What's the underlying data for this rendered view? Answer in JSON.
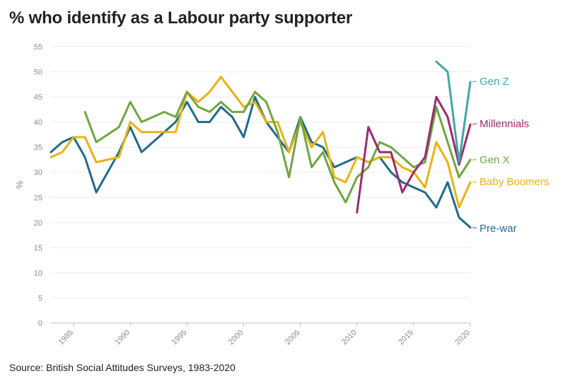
{
  "title": "% who identify as a Labour party supporter",
  "source": "Source: British Social Attitudes Surveys, 1983-2020",
  "chart_data": {
    "type": "line",
    "title": "% who identify as a Labour party supporter",
    "xlabel": "",
    "ylabel": "%",
    "xlim": [
      1983,
      2020
    ],
    "ylim": [
      0,
      55
    ],
    "yticks": [
      0,
      5,
      10,
      15,
      20,
      25,
      30,
      35,
      40,
      45,
      50,
      55
    ],
    "xticks": [
      1985,
      1990,
      1995,
      2000,
      2005,
      2010,
      2015,
      2020
    ],
    "grid": true,
    "legend": "right, end labels",
    "series": [
      {
        "name": "Pre-war",
        "color": "#1f6b8e",
        "x": [
          1983,
          1984,
          1985,
          1986,
          1987,
          1989,
          1990,
          1991,
          1993,
          1994,
          1995,
          1996,
          1997,
          1998,
          1999,
          2000,
          2001,
          2002,
          2003,
          2004,
          2005,
          2006,
          2007,
          2008,
          2009,
          2010,
          2011,
          2012,
          2013,
          2014,
          2015,
          2016,
          2017,
          2018,
          2019,
          2020
        ],
        "y": [
          34,
          36,
          37,
          33,
          26,
          34,
          39,
          34,
          38,
          40,
          44,
          40,
          40,
          43,
          41,
          37,
          45,
          40,
          37,
          34,
          41,
          36,
          35,
          31,
          32,
          33,
          32,
          33,
          30,
          28,
          27,
          26,
          23,
          28,
          21,
          19
        ]
      },
      {
        "name": "Baby Boomers",
        "color": "#e8b213",
        "x": [
          1983,
          1984,
          1985,
          1986,
          1987,
          1989,
          1990,
          1991,
          1993,
          1994,
          1995,
          1996,
          1997,
          1998,
          1999,
          2000,
          2001,
          2002,
          2003,
          2004,
          2005,
          2006,
          2007,
          2008,
          2009,
          2010,
          2011,
          2012,
          2013,
          2014,
          2015,
          2016,
          2017,
          2018,
          2019,
          2020
        ],
        "y": [
          33,
          34,
          37,
          37,
          32,
          33,
          40,
          38,
          38,
          38,
          46,
          44,
          46,
          49,
          46,
          43,
          44,
          40,
          40,
          34,
          40,
          35,
          38,
          29,
          28,
          33,
          32,
          33,
          33,
          31,
          30,
          27,
          36,
          32,
          23,
          28
        ]
      },
      {
        "name": "Gen X",
        "color": "#6ea63f",
        "x": [
          1986,
          1987,
          1989,
          1990,
          1991,
          1993,
          1994,
          1995,
          1996,
          1997,
          1998,
          1999,
          2000,
          2001,
          2002,
          2003,
          2004,
          2005,
          2006,
          2007,
          2008,
          2009,
          2010,
          2011,
          2012,
          2013,
          2014,
          2015,
          2016,
          2017,
          2018,
          2019,
          2020
        ],
        "y": [
          42,
          36,
          39,
          44,
          40,
          42,
          41,
          46,
          43,
          42,
          44,
          42,
          42,
          46,
          44,
          38,
          29,
          41,
          31,
          34,
          28,
          24,
          29,
          31,
          36,
          35,
          33,
          31,
          32,
          43,
          36,
          29,
          32.5
        ]
      },
      {
        "name": "Millennials",
        "color": "#9b2a6e",
        "x": [
          2010,
          2011,
          2012,
          2013,
          2014,
          2015,
          2016,
          2017,
          2018,
          2019,
          2020
        ],
        "y": [
          22,
          39,
          34,
          34,
          26,
          30,
          33,
          45,
          41,
          31.5,
          39.5
        ]
      },
      {
        "name": "Gen Z",
        "color": "#3fa8a5",
        "x": [
          2017,
          2018,
          2019,
          2020
        ],
        "y": [
          52,
          50,
          32,
          48
        ]
      }
    ],
    "end_labels": [
      {
        "name": "Gen Z",
        "y": 48
      },
      {
        "name": "Millennials",
        "y": 39.5
      },
      {
        "name": "Gen X",
        "y": 32.5
      },
      {
        "name": "Baby Boomers",
        "y": 28
      },
      {
        "name": "Pre-war",
        "y": 19
      }
    ]
  }
}
